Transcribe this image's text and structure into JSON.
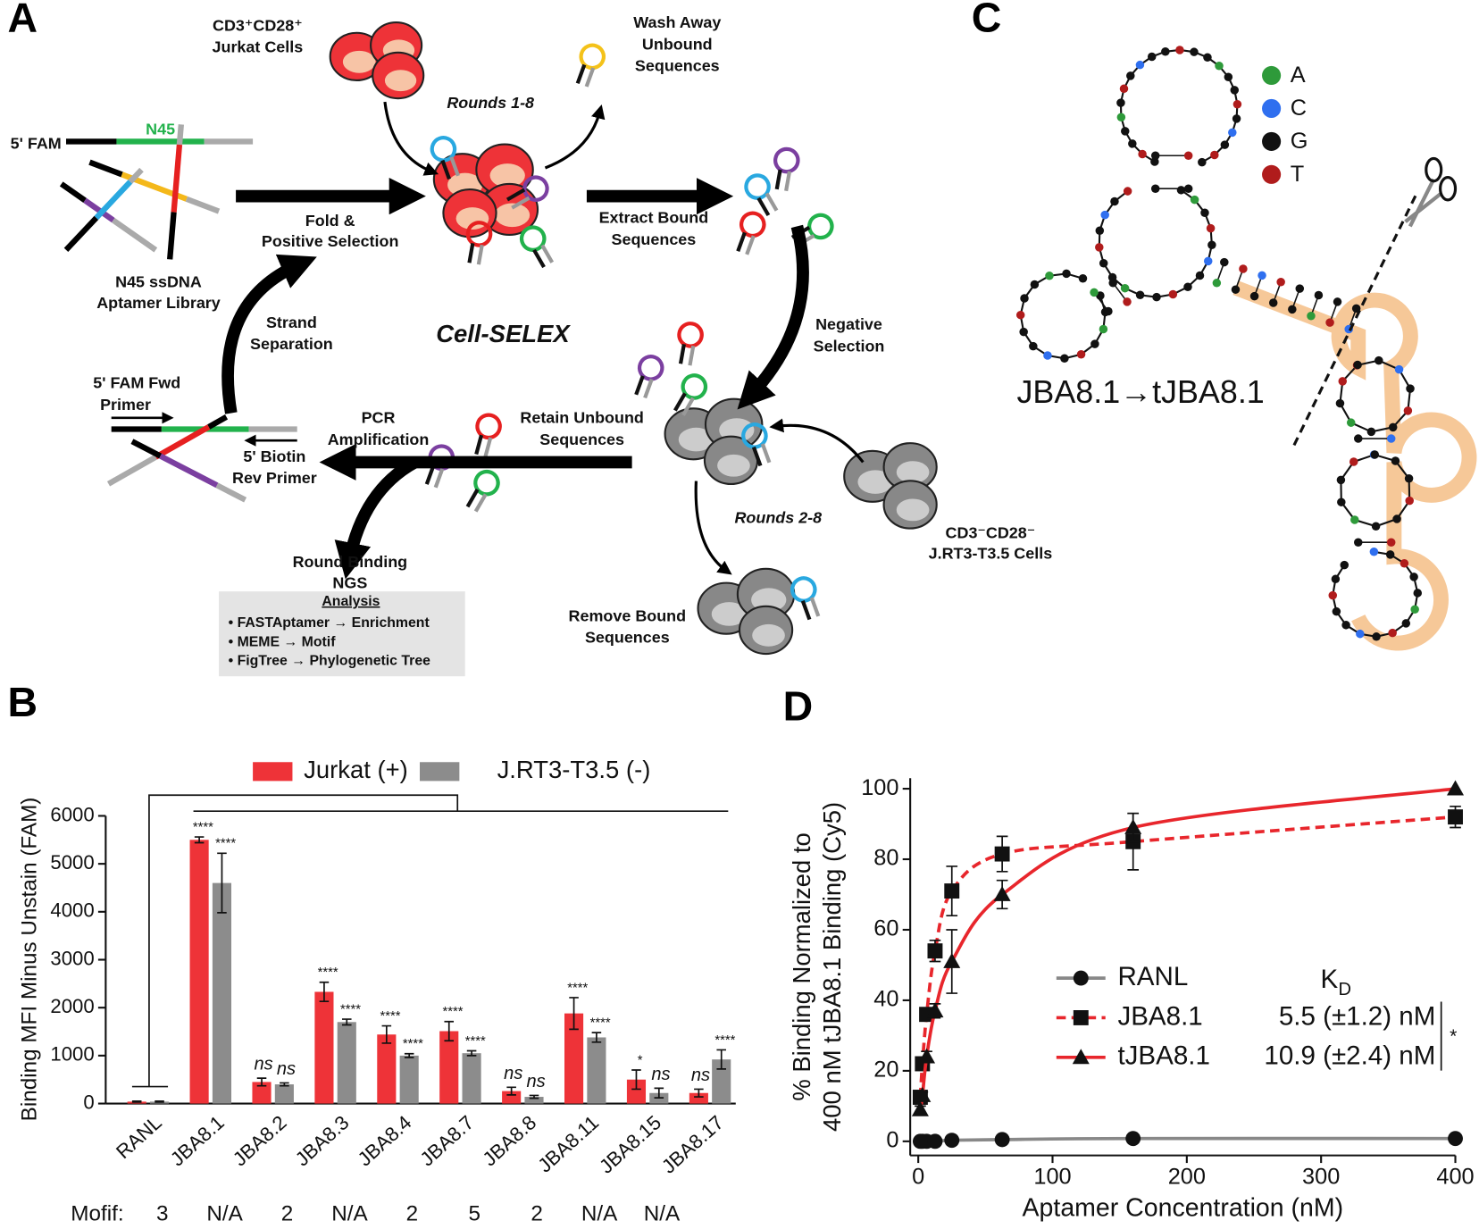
{
  "panels": {
    "a": "A",
    "b": "B",
    "c": "C",
    "d": "D"
  },
  "diagram": {
    "jurkat": [
      "CD3⁺CD28⁺",
      "Jurkat Cells"
    ],
    "wash": [
      "Wash Away",
      "Unbound",
      "Sequences"
    ],
    "rounds_positive": "Rounds 1-8",
    "fam": "5' FAM",
    "n45": "N45",
    "library": [
      "N45 ssDNA",
      "Aptamer Library"
    ],
    "fold": [
      "Fold &",
      "Positive Selection"
    ],
    "extract": [
      "Extract Bound",
      "Sequences"
    ],
    "title": "Cell-SELEX",
    "strand": [
      "Strand",
      "Separation"
    ],
    "negative": [
      "Negative",
      "Selection"
    ],
    "fwd": [
      "5' FAM Fwd",
      "Primer"
    ],
    "pcr": [
      "PCR",
      "Amplification"
    ],
    "biotin": [
      "5' Biotin",
      "Rev Primer"
    ],
    "retain": [
      "Retain Unbound",
      "Sequences"
    ],
    "rounds_negative": "Rounds 2-8",
    "negative_cells": [
      "CD3⁻CD28⁻",
      "J.RT3-T3.5 Cells"
    ],
    "round_binding": [
      "Round Binding",
      "NGS"
    ],
    "analysis": "Analysis",
    "analysis_items": [
      "• FASTAptamer → Enrichment",
      "• MEME → Motif",
      "• FigTree → Phylogenetic Tree"
    ],
    "remove": [
      "Remove Bound",
      "Sequences"
    ]
  },
  "structure": {
    "legend": [
      {
        "base": "A",
        "color": "#2e9a3a"
      },
      {
        "base": "C",
        "color": "#2f6fef"
      },
      {
        "base": "G",
        "color": "#111111"
      },
      {
        "base": "T",
        "color": "#b01c1c"
      }
    ],
    "label": "JBA8.1→tJBA8.1"
  },
  "chart_data": [
    {
      "type": "bar",
      "y_label": "Binding MFI Minus Unstain (FAM)",
      "categories": [
        "RANL",
        "JBA8.1",
        "JBA8.2",
        "JBA8.3",
        "JBA8.4",
        "JBA8.7",
        "JBA8.8",
        "JBA8.11",
        "JBA8.15",
        "JBA8.17"
      ],
      "series": [
        {
          "name": "Jurkat (+)",
          "color": "#ee3338",
          "values": [
            40,
            5500,
            450,
            2330,
            1440,
            1510,
            260,
            1880,
            500,
            220
          ],
          "errors": [
            10,
            60,
            80,
            200,
            180,
            200,
            80,
            330,
            200,
            80
          ],
          "significance": [
            null,
            "****",
            "ns",
            "****",
            "****",
            "****",
            "ns",
            "****",
            "*",
            "ns"
          ]
        },
        {
          "name": "J.RT3-T3.5 (-)",
          "color": "#8c8c8c",
          "values": [
            40,
            4600,
            400,
            1700,
            1000,
            1050,
            140,
            1380,
            220,
            920
          ],
          "errors": [
            10,
            620,
            30,
            60,
            40,
            50,
            30,
            100,
            100,
            200
          ],
          "significance": [
            null,
            "****",
            "ns",
            "****",
            "****",
            "****",
            "ns",
            "****",
            "ns",
            "****"
          ]
        }
      ],
      "ylim": [
        0,
        6000
      ],
      "yticks": [
        0,
        1000,
        2000,
        3000,
        4000,
        5000,
        6000
      ],
      "motif_label": "Mofif:",
      "motifs": [
        "3",
        "N/A",
        "2",
        "N/A",
        "2",
        "5",
        "2",
        "N/A",
        "N/A",
        null
      ]
    },
    {
      "type": "scatter",
      "x_label": "Aptamer Concentration (nM)",
      "y_label": [
        "% Binding Normalized to",
        "400 nM tJBA8.1 Binding (Cy5)"
      ],
      "x": [
        1.5,
        3.1,
        6.25,
        12.5,
        25,
        62.5,
        160,
        400
      ],
      "xlim": [
        -6,
        400
      ],
      "xticks": [
        0,
        100,
        200,
        300,
        400
      ],
      "ylim": [
        -4,
        103
      ],
      "yticks": [
        0,
        20,
        40,
        60,
        80,
        100
      ],
      "legend_header": [
        "K",
        "D"
      ],
      "significance": "*",
      "series": [
        {
          "name": "RANL",
          "color": "#888888",
          "marker": "circle",
          "dashed": false,
          "values": [
            0,
            0,
            0,
            0,
            0.3,
            0.5,
            0.8,
            0.8
          ],
          "errors": [
            0,
            0,
            0,
            0,
            0,
            0,
            0,
            0
          ],
          "kd": null
        },
        {
          "name": "JBA8.1",
          "color": "#e8262c",
          "marker": "square",
          "dashed": true,
          "values": [
            12.5,
            22,
            36,
            54,
            71,
            81.5,
            85,
            92
          ],
          "errors": [
            1,
            1,
            1.5,
            3,
            7,
            5,
            8,
            3
          ],
          "kd": "5.5 (±1.2) nM"
        },
        {
          "name": "tJBA8.1",
          "color": "#e8262c",
          "marker": "triangle",
          "dashed": false,
          "values": [
            9,
            13,
            24,
            37,
            51,
            70,
            89,
            100
          ],
          "errors": [
            1,
            1,
            1.5,
            2,
            9,
            4,
            4,
            0
          ],
          "kd": "10.9 (±2.4) nM"
        }
      ]
    }
  ]
}
